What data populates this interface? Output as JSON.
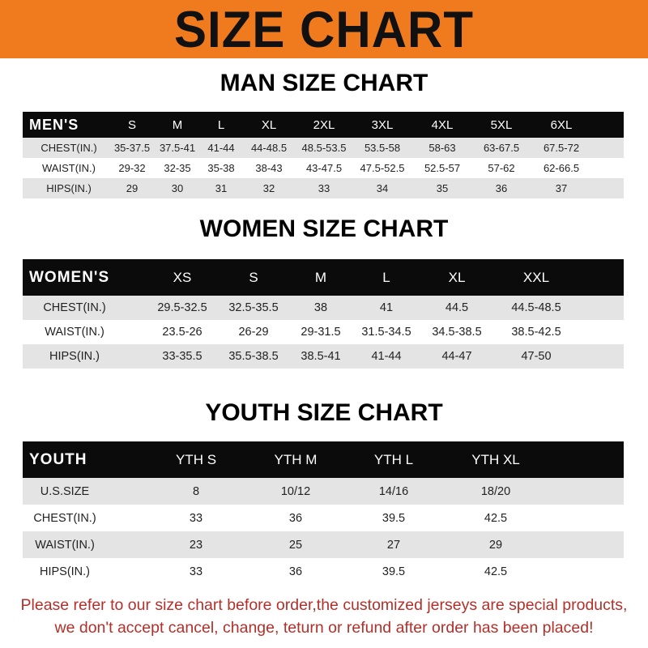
{
  "banner_title": "SIZE CHART",
  "colors": {
    "banner": "#f07a1e",
    "header_row": "#0b0b0b",
    "note": "#b3302a"
  },
  "men": {
    "title": "MAN SIZE CHART",
    "headers": [
      "MEN'S",
      "S",
      "M",
      "L",
      "XL",
      "2XL",
      "3XL",
      "4XL",
      "5XL",
      "6XL"
    ],
    "rows": [
      [
        "CHEST(IN.)",
        "35-37.5",
        "37.5-41",
        "41-44",
        "44-48.5",
        "48.5-53.5",
        "53.5-58",
        "58-63",
        "63-67.5",
        "67.5-72"
      ],
      [
        "WAIST(IN.)",
        "29-32",
        "32-35",
        "35-38",
        "38-43",
        "43-47.5",
        "47.5-52.5",
        "52.5-57",
        "57-62",
        "62-66.5"
      ],
      [
        "HIPS(IN.)",
        "29",
        "30",
        "31",
        "32",
        "33",
        "34",
        "35",
        "36",
        "37"
      ]
    ]
  },
  "women": {
    "title": "WOMEN SIZE CHART",
    "headers": [
      "WOMEN'S",
      "XS",
      "S",
      "M",
      "L",
      "XL",
      "XXL"
    ],
    "rows": [
      [
        "CHEST(IN.)",
        "29.5-32.5",
        "32.5-35.5",
        "38",
        "41",
        "44.5",
        "44.5-48.5"
      ],
      [
        "WAIST(IN.)",
        "23.5-26",
        "26-29",
        "29-31.5",
        "31.5-34.5",
        "34.5-38.5",
        "38.5-42.5"
      ],
      [
        "HIPS(IN.)",
        "33-35.5",
        "35.5-38.5",
        "38.5-41",
        "41-44",
        "44-47",
        "47-50"
      ]
    ]
  },
  "youth": {
    "title": "YOUTH SIZE CHART",
    "headers": [
      "YOUTH",
      "YTH S",
      "YTH M",
      "YTH L",
      "YTH XL"
    ],
    "rows": [
      [
        "U.S.SIZE",
        "8",
        "10/12",
        "14/16",
        "18/20"
      ],
      [
        "CHEST(IN.)",
        "33",
        "36",
        "39.5",
        "42.5"
      ],
      [
        "WAIST(IN.)",
        "23",
        "25",
        "27",
        "29"
      ],
      [
        "HIPS(IN.)",
        "33",
        "36",
        "39.5",
        "42.5"
      ]
    ]
  },
  "note": {
    "line1": "Please refer to our size chart before order,the customized jerseys are special products,",
    "line2": "we don't accept cancel, change, teturn or refund after order has been placed!"
  }
}
